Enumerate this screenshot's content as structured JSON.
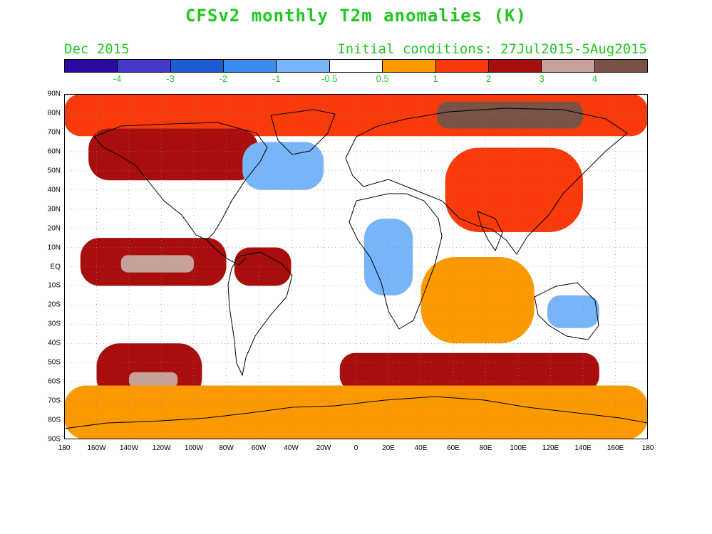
{
  "header": {
    "title": "CFSv2 monthly T2m anomalies (K)",
    "month": "Dec 2015",
    "initial_conditions": "Initial conditions: 27Jul2015-5Aug2015"
  },
  "colors": {
    "text": "#22c722",
    "land_outline": "#000000",
    "grid": "#888888",
    "legend_bins": [
      "#2a0aa0",
      "#4438c8",
      "#1a5cd2",
      "#3c8cf0",
      "#78b4f8",
      "#ffffff",
      "#fa9a00",
      "#f83a0a",
      "#a80e0e",
      "#c8a09a",
      "#7a5246"
    ]
  },
  "legend": {
    "ticks": [
      "-4",
      "-3",
      "-2",
      "-1",
      "-0.5",
      "0.5",
      "1",
      "2",
      "3",
      "4"
    ]
  },
  "map": {
    "lat_labels": [
      "90N",
      "80N",
      "70N",
      "60N",
      "50N",
      "40N",
      "30N",
      "20N",
      "10N",
      "EQ",
      "10S",
      "20S",
      "30S",
      "40S",
      "50S",
      "60S",
      "70S",
      "80S",
      "90S"
    ],
    "lon_labels": [
      "180",
      "160W",
      "140W",
      "120W",
      "100W",
      "80W",
      "60W",
      "40W",
      "20W",
      "0",
      "20E",
      "40E",
      "60E",
      "80E",
      "100E",
      "120E",
      "140E",
      "160E",
      "180"
    ],
    "anomaly_regions": [
      {
        "name": "arctic-warm",
        "lon": [
          -180,
          180
        ],
        "lat": [
          68,
          90
        ],
        "anomaly": 1.5
      },
      {
        "name": "siberia-high",
        "lon": [
          50,
          140
        ],
        "lat": [
          72,
          86
        ],
        "anomaly": 4.2
      },
      {
        "name": "alaska-canada",
        "lon": [
          -165,
          -60
        ],
        "lat": [
          45,
          72
        ],
        "anomaly": 2.5
      },
      {
        "name": "east-pacific-enso",
        "lon": [
          -170,
          -80
        ],
        "lat": [
          -10,
          15
        ],
        "anomaly": 2.5
      },
      {
        "name": "enso-core",
        "lon": [
          -145,
          -100
        ],
        "lat": [
          -3,
          6
        ],
        "anomaly": 3.3
      },
      {
        "name": "south-pacific-warm",
        "lon": [
          -160,
          -95
        ],
        "lat": [
          -70,
          -40
        ],
        "anomaly": 2.5
      },
      {
        "name": "south-pacific-core",
        "lon": [
          -140,
          -110
        ],
        "lat": [
          -63,
          -55
        ],
        "anomaly": 3.2
      },
      {
        "name": "southern-ocean-warm",
        "lon": [
          -10,
          150
        ],
        "lat": [
          -65,
          -45
        ],
        "anomaly": 2.0
      },
      {
        "name": "antarctica-warm",
        "lon": [
          -180,
          180
        ],
        "lat": [
          -90,
          -62
        ],
        "anomaly": 0.8
      },
      {
        "name": "asia-warm",
        "lon": [
          55,
          140
        ],
        "lat": [
          18,
          62
        ],
        "anomaly": 1.5
      },
      {
        "name": "africa-cool",
        "lon": [
          5,
          35
        ],
        "lat": [
          -15,
          25
        ],
        "anomaly": -1.0
      },
      {
        "name": "greenland-cool",
        "lon": [
          -70,
          -20
        ],
        "lat": [
          40,
          65
        ],
        "anomaly": -0.8
      },
      {
        "name": "australia-cool",
        "lon": [
          118,
          150
        ],
        "lat": [
          -32,
          -15
        ],
        "anomaly": -1.0
      },
      {
        "name": "amazon-warm",
        "lon": [
          -75,
          -40
        ],
        "lat": [
          -10,
          10
        ],
        "anomaly": 2.3
      },
      {
        "name": "indian-ocean-warm",
        "lon": [
          40,
          110
        ],
        "lat": [
          -40,
          5
        ],
        "anomaly": 0.8
      }
    ],
    "map_title_label": "Dec 2015"
  }
}
